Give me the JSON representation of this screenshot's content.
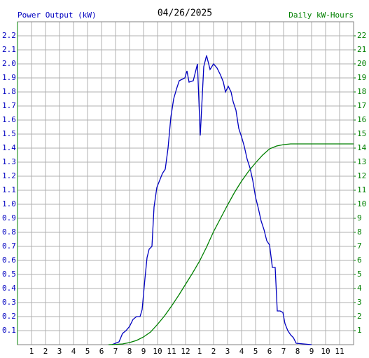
{
  "chart_data": {
    "type": "line",
    "title": "04/26/2025",
    "y_label": "Power Output (kW)",
    "y2_label": "Daily kW-Hours",
    "xlim": [
      0,
      24
    ],
    "xticks": [
      1,
      2,
      3,
      4,
      5,
      6,
      7,
      8,
      9,
      10,
      11,
      12,
      {
        "value": 13,
        "label": "1"
      },
      {
        "value": 14,
        "label": "2"
      },
      {
        "value": 15,
        "label": "3"
      },
      {
        "value": 16,
        "label": "4"
      },
      {
        "value": 17,
        "label": "5"
      },
      {
        "value": 18,
        "label": "6"
      },
      {
        "value": 19,
        "label": "7"
      },
      {
        "value": 20,
        "label": "8"
      },
      {
        "value": 21,
        "label": "9"
      },
      {
        "value": 22,
        "label": "10"
      },
      {
        "value": 23,
        "label": "11"
      }
    ],
    "ylim": [
      0,
      2.3
    ],
    "yticks": [
      0.1,
      0.2,
      0.3,
      0.4,
      0.5,
      0.6,
      0.7,
      0.8,
      0.9,
      {
        "value": 1,
        "label": "1.0"
      },
      1.1,
      1.2,
      1.3,
      1.4,
      1.5,
      1.6,
      1.7,
      1.8,
      1.9,
      {
        "value": 2,
        "label": "2.0"
      },
      2.1,
      2.2
    ],
    "y2lim": [
      0,
      23
    ],
    "y2ticks": [
      1,
      2,
      3,
      4,
      5,
      6,
      7,
      8,
      9,
      10,
      11,
      12,
      13,
      14,
      15,
      16,
      17,
      18,
      19,
      20,
      21,
      22
    ],
    "grid": true,
    "series": [
      {
        "name": "Power Output (kW)",
        "color": "#0000c0",
        "axis": "y",
        "x": [
          6.75,
          7.25,
          7.5,
          7.75,
          8,
          8.25,
          8.5,
          8.75,
          8.9,
          9.1,
          9.25,
          9.4,
          9.6,
          9.75,
          9.95,
          10.15,
          10.35,
          10.55,
          10.75,
          10.95,
          11.15,
          11.35,
          11.55,
          11.75,
          11.95,
          12.1,
          12.25,
          12.55,
          12.85,
          13.05,
          13.3,
          13.5,
          13.75,
          14,
          14.25,
          14.5,
          14.7,
          14.85,
          15.05,
          15.25,
          15.4,
          15.6,
          15.8,
          16,
          16.2,
          16.4,
          16.6,
          16.8,
          17,
          17.2,
          17.4,
          17.6,
          17.8,
          18,
          18.2,
          18.4,
          18.55,
          18.75,
          18.95,
          19.1,
          19.3,
          19.5,
          19.7,
          19.9,
          21
        ],
        "values": [
          0,
          0.02,
          0.08,
          0.1,
          0.13,
          0.18,
          0.2,
          0.2,
          0.25,
          0.47,
          0.62,
          0.68,
          0.7,
          0.98,
          1.12,
          1.17,
          1.22,
          1.25,
          1.4,
          1.62,
          1.75,
          1.82,
          1.88,
          1.89,
          1.9,
          1.95,
          1.87,
          1.88,
          2.0,
          1.49,
          1.98,
          2.06,
          1.96,
          2.0,
          1.97,
          1.92,
          1.87,
          1.8,
          1.84,
          1.8,
          1.73,
          1.67,
          1.54,
          1.48,
          1.41,
          1.32,
          1.26,
          1.17,
          1.05,
          0.97,
          0.88,
          0.82,
          0.74,
          0.71,
          0.55,
          0.55,
          0.24,
          0.24,
          0.23,
          0.15,
          0.1,
          0.07,
          0.05,
          0.01,
          0
        ]
      },
      {
        "name": "Daily kW-Hours",
        "color": "#008000",
        "axis": "y2",
        "x": [
          6.5,
          7,
          7.5,
          8,
          8.5,
          9,
          9.5,
          10,
          10.5,
          11,
          11.5,
          12,
          12.5,
          13,
          13.5,
          14,
          14.5,
          15,
          15.5,
          16,
          16.5,
          17,
          17.5,
          18,
          18.5,
          19,
          19.5,
          24
        ],
        "values": [
          0,
          0.02,
          0.05,
          0.15,
          0.3,
          0.55,
          0.9,
          1.45,
          2.05,
          2.75,
          3.5,
          4.3,
          5.1,
          5.95,
          6.95,
          8.05,
          9.0,
          9.95,
          10.85,
          11.65,
          12.35,
          12.95,
          13.5,
          13.95,
          14.15,
          14.25,
          14.3,
          14.3
        ]
      }
    ]
  }
}
